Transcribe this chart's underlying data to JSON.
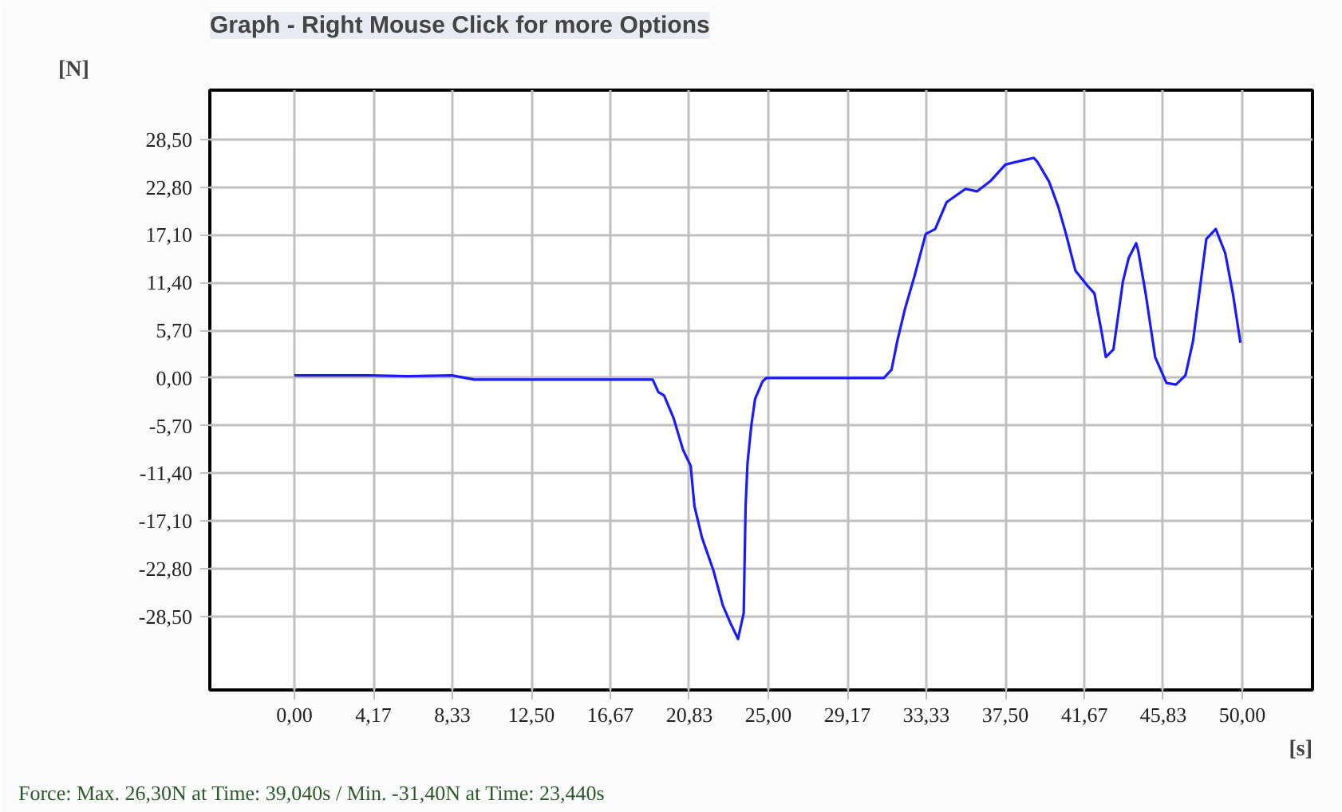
{
  "chart_data": {
    "type": "line",
    "title": "Graph - Right Mouse Click for more Options",
    "xlabel": "[s]",
    "ylabel": "[N]",
    "annotations": [
      "Force: Max. 26,30N at Time: 39,040s / Min. -31,40N at Time: 23,440s"
    ],
    "x": [
      0,
      2,
      4,
      6,
      8.3,
      9.5,
      12,
      15,
      18.9,
      19.2,
      19.5,
      20.0,
      20.5,
      20.9,
      21.1,
      21.5,
      22.1,
      22.6,
      23.0,
      23.4,
      23.7,
      23.75,
      23.8,
      23.9,
      24.1,
      24.3,
      24.7,
      24.9,
      27,
      29,
      31.1,
      31.5,
      31.8,
      32.2,
      32.7,
      33.3,
      33.8,
      34.4,
      35.4,
      36.0,
      36.7,
      37.5,
      38.4,
      39.0,
      39.2,
      39.8,
      40.3,
      40.7,
      41.2,
      41.8,
      42.2,
      42.6,
      42.8,
      43.2,
      43.7,
      44.0,
      44.4,
      44.5,
      44.9,
      45.4,
      46.0,
      46.5,
      47.0,
      47.4,
      48.1,
      48.6,
      49.1,
      49.5,
      49.9
    ],
    "series": [
      {
        "color": "#1a1aff",
        "values": [
          0.3,
          0.3,
          0.3,
          0.2,
          0.3,
          -0.2,
          -0.2,
          -0.2,
          -0.2,
          -1.7,
          -2.1,
          -4.8,
          -8.6,
          -10.5,
          -15.3,
          -19.1,
          -23.0,
          -27.2,
          -29.3,
          -31.2,
          -28.1,
          -21.6,
          -15.3,
          -10.2,
          -5.7,
          -2.5,
          -0.4,
          0.0,
          0.0,
          0.0,
          0.0,
          1.0,
          4.4,
          8.2,
          12.1,
          17.2,
          17.8,
          21.0,
          22.6,
          22.3,
          23.5,
          25.5,
          26.0,
          26.3,
          25.8,
          23.5,
          20.4,
          17.2,
          12.8,
          11.1,
          10.1,
          5.2,
          2.5,
          3.4,
          11.5,
          14.3,
          16.1,
          15.3,
          10.1,
          2.5,
          -0.6,
          -0.8,
          0.3,
          4.4,
          16.6,
          17.8,
          14.9,
          10.1,
          4.2
        ]
      }
    ],
    "xlim": [
      -4.46,
      53.7
    ],
    "ylim": [
      -37.3,
      34.4
    ],
    "xticks": [
      {
        "value": 0,
        "label": "0,00"
      },
      {
        "value": 4.17,
        "label": "4,17"
      },
      {
        "value": 8.33,
        "label": "8,33"
      },
      {
        "value": 12.5,
        "label": "12,50"
      },
      {
        "value": 16.67,
        "label": "16,67"
      },
      {
        "value": 20.83,
        "label": "20,83"
      },
      {
        "value": 25,
        "label": "25,00"
      },
      {
        "value": 29.17,
        "label": "29,17"
      },
      {
        "value": 33.33,
        "label": "33,33"
      },
      {
        "value": 37.5,
        "label": "37,50"
      },
      {
        "value": 41.67,
        "label": "41,67"
      },
      {
        "value": 45.83,
        "label": "45,83"
      },
      {
        "value": 50,
        "label": "50,00"
      }
    ],
    "yticks": [
      {
        "value": 28.5,
        "label": "28,50"
      },
      {
        "value": 22.8,
        "label": "22,80"
      },
      {
        "value": 17.1,
        "label": "17,10"
      },
      {
        "value": 11.4,
        "label": "11,40"
      },
      {
        "value": 5.7,
        "label": "5,70"
      },
      {
        "value": 0,
        "label": "0,00"
      },
      {
        "value": -5.7,
        "label": "-5,70"
      },
      {
        "value": -11.4,
        "label": "-11,40"
      },
      {
        "value": -17.1,
        "label": "-17,10"
      },
      {
        "value": -22.8,
        "label": "-22,80"
      },
      {
        "value": -28.5,
        "label": "-28,50"
      }
    ],
    "grid": true,
    "marker": "none",
    "line_style": "solid"
  }
}
